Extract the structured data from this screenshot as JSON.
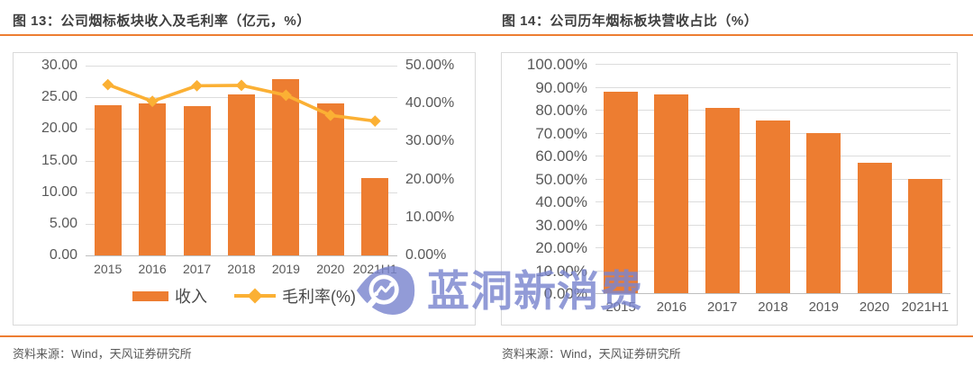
{
  "colors": {
    "bar": "#ED7D31",
    "line": "#FBB034",
    "grid": "#DCDCDC",
    "axis_line": "#BFBFBF",
    "tick_text": "#595959",
    "title_text": "#3F3F3F",
    "accent": "#ED7D31",
    "source_text": "#595959",
    "watermark": "#7B86CF"
  },
  "left_panel": {
    "title": "图 13：公司烟标板块收入及毛利率（亿元，%）",
    "source": "资料来源：Wind，天风证券研究所",
    "legend": [
      {
        "label": "收入",
        "type": "bar"
      },
      {
        "label": "毛利率(%)",
        "type": "line"
      }
    ]
  },
  "right_panel": {
    "title": "图 14：公司历年烟标板块营收占比（%）",
    "source": "资料来源：Wind，天风证券研究所"
  },
  "watermark": {
    "text": "蓝洞新消费"
  },
  "chart_data": [
    {
      "type": "bar",
      "subtype": "combo bar+line, dual axis",
      "title": "公司烟标板块收入及毛利率（亿元，%）",
      "categories": [
        "2015",
        "2016",
        "2017",
        "2018",
        "2019",
        "2020",
        "2021H1"
      ],
      "series": [
        {
          "name": "收入",
          "type": "bar",
          "axis": "left",
          "values": [
            23.8,
            24.0,
            23.6,
            25.5,
            27.8,
            24.0,
            12.2
          ]
        },
        {
          "name": "毛利率(%)",
          "type": "line",
          "axis": "right",
          "values": [
            45.0,
            40.6,
            44.7,
            44.8,
            42.2,
            36.9,
            35.4
          ]
        }
      ],
      "left_axis": {
        "min": 0,
        "max": 30,
        "step": 5,
        "ticks": [
          "30.00",
          "25.00",
          "20.00",
          "15.00",
          "10.00",
          "5.00",
          "0.00"
        ]
      },
      "right_axis": {
        "min": 0,
        "max": 50,
        "step": 10,
        "ticks": [
          "50.00%",
          "40.00%",
          "30.00%",
          "20.00%",
          "10.00%",
          "0.00%"
        ]
      },
      "grid": true,
      "legend_position": "bottom"
    },
    {
      "type": "bar",
      "title": "公司历年烟标板块营收占比（%）",
      "categories": [
        "2015",
        "2016",
        "2017",
        "2018",
        "2019",
        "2020",
        "2021H1"
      ],
      "values": [
        87.9,
        86.8,
        80.7,
        75.4,
        69.7,
        57.0,
        50.0
      ],
      "y_axis": {
        "min": 0,
        "max": 100,
        "step": 10,
        "ticks": [
          "100.00%",
          "90.00%",
          "80.00%",
          "70.00%",
          "60.00%",
          "50.00%",
          "40.00%",
          "30.00%",
          "20.00%",
          "10.00%",
          "0.00%"
        ]
      },
      "grid": true,
      "legend_position": "none"
    }
  ]
}
